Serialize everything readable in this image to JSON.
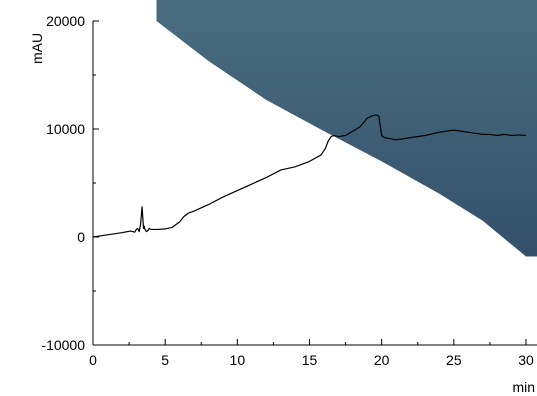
{
  "chart_data": {
    "type": "line",
    "title": "",
    "xlabel": "min",
    "ylabel": "mAU",
    "xlim": [
      0,
      30
    ],
    "ylim": [
      -10000,
      20000
    ],
    "x_ticks": [
      0,
      5,
      10,
      15,
      20,
      25,
      30
    ],
    "y_ticks": [
      -10000,
      0,
      10000,
      20000
    ],
    "x_tick_labels": [
      "0",
      "5",
      "10",
      "15",
      "20",
      "25",
      "30"
    ],
    "y_tick_labels": [
      "-10000",
      "0",
      "10000",
      "20000"
    ],
    "grid": false,
    "legend": "none",
    "colors": {
      "line": "#000000",
      "overlay_top": "#4a6e7f",
      "overlay_bottom": "#34506b"
    },
    "overlay_band": {
      "upper_edge": [
        [
          5.3,
          20000
        ],
        [
          30.6,
          20000
        ]
      ],
      "lower_edge": [
        [
          4.4,
          20000
        ],
        [
          8,
          16300
        ],
        [
          12,
          12700
        ],
        [
          16,
          9800
        ],
        [
          20,
          7000
        ],
        [
          24,
          4000
        ],
        [
          27,
          1500
        ],
        [
          30,
          -1800
        ]
      ]
    },
    "series": [
      {
        "name": "",
        "x": [
          0,
          1,
          2,
          2.6,
          2.9,
          3.0,
          3.1,
          3.2,
          3.3,
          3.4,
          3.45,
          3.5,
          3.55,
          3.6,
          3.7,
          3.8,
          3.9,
          4.0,
          4.5,
          5.0,
          5.5,
          6.0,
          6.3,
          6.6,
          7.0,
          8.0,
          9.0,
          10.0,
          11.0,
          12.0,
          13.0,
          14.0,
          15.0,
          15.8,
          16.1,
          16.3,
          16.5,
          16.7,
          17.0,
          17.5,
          18.0,
          18.5,
          19.0,
          19.3,
          19.6,
          19.8,
          20.0,
          20.2,
          20.6,
          21.0,
          21.5,
          22.0,
          23.0,
          24.0,
          24.5,
          25.0,
          25.5,
          26.0,
          26.5,
          27.0,
          27.5,
          28.0,
          28.5,
          29.0,
          29.5,
          30.0
        ],
        "y": [
          0,
          200,
          400,
          550,
          450,
          700,
          800,
          500,
          1200,
          2800,
          1800,
          800,
          1000,
          700,
          500,
          600,
          800,
          700,
          700,
          750,
          900,
          1400,
          1900,
          2200,
          2400,
          3000,
          3700,
          4300,
          4900,
          5500,
          6200,
          6500,
          7000,
          7600,
          8200,
          8900,
          9300,
          9400,
          9300,
          9400,
          9800,
          10200,
          11000,
          11200,
          11300,
          11200,
          9400,
          9200,
          9100,
          9000,
          9100,
          9200,
          9400,
          9700,
          9800,
          9900,
          9800,
          9700,
          9600,
          9500,
          9500,
          9400,
          9500,
          9400,
          9450,
          9400
        ]
      }
    ]
  }
}
